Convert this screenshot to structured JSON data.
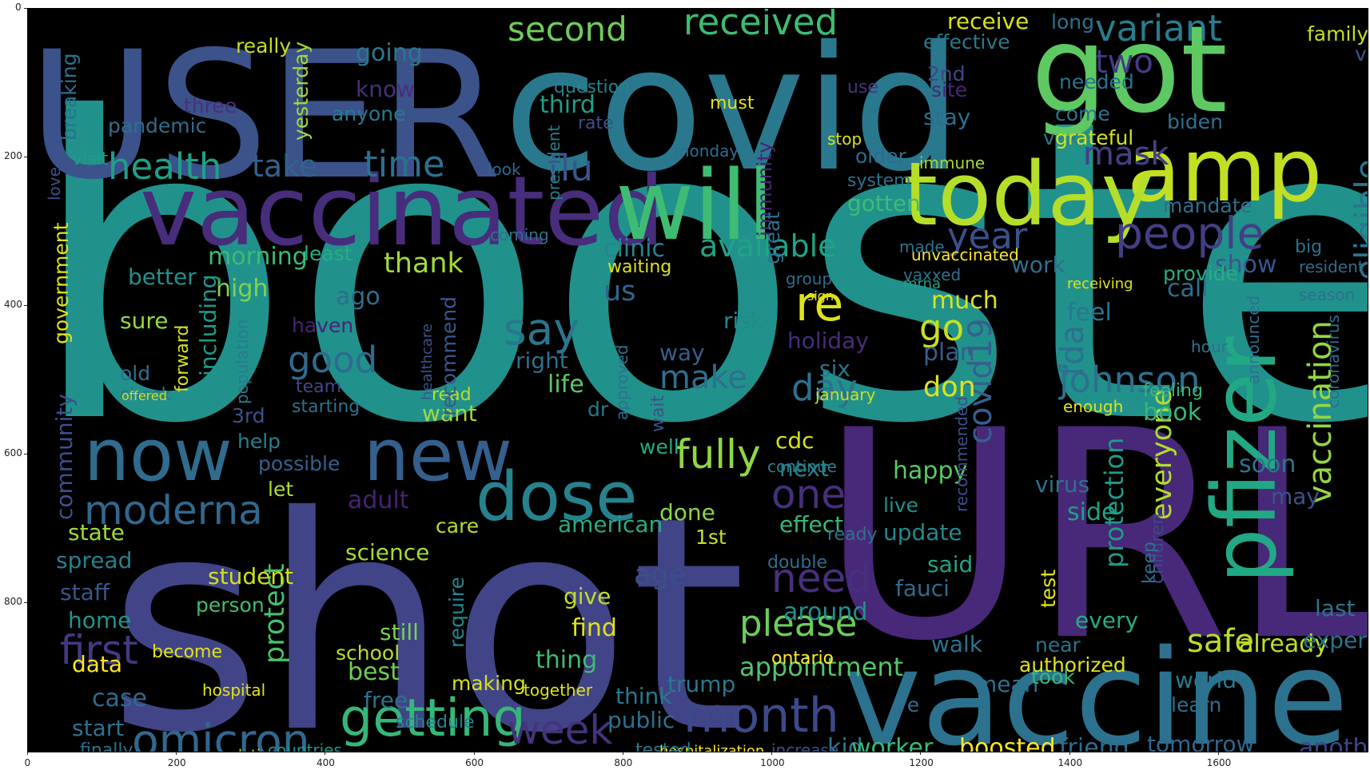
{
  "axes": {
    "x_ticks": [
      "0",
      "200",
      "400",
      "600",
      "800",
      "1000",
      "1200",
      "1400",
      "1600"
    ],
    "y_ticks": [
      "0",
      "200",
      "400",
      "600",
      "800"
    ]
  },
  "words": [
    {
      "text": "booster",
      "color": "#21918c"
    },
    {
      "text": "shot",
      "color": "#414487"
    },
    {
      "text": "covid",
      "color": "#2a788e"
    },
    {
      "text": "URL",
      "color": "#482878"
    },
    {
      "text": "USER",
      "color": "#3b528b"
    },
    {
      "text": "vaccine",
      "color": "#2c728e"
    },
    {
      "text": "vaccinated",
      "color": "#472d7b"
    },
    {
      "text": "got",
      "color": "#5ec962"
    },
    {
      "text": "amp",
      "color": "#c2df23"
    },
    {
      "text": "will",
      "color": "#3fbc73"
    },
    {
      "text": "today",
      "color": "#b5de2b"
    },
    {
      "text": "pfizer",
      "color": "#22a884"
    },
    {
      "text": "dose",
      "color": "#26828e"
    },
    {
      "text": "now",
      "color": "#2f6c8e"
    },
    {
      "text": "new",
      "color": "#355f8d"
    },
    {
      "text": "getting",
      "color": "#35b779"
    },
    {
      "text": "month",
      "color": "#3e4989"
    },
    {
      "text": "omicron",
      "color": "#31688e"
    },
    {
      "text": "moderna",
      "color": "#31688e"
    },
    {
      "text": "first",
      "color": "#443983"
    },
    {
      "text": "people",
      "color": "#433e85"
    },
    {
      "text": "health",
      "color": "#1fa088"
    },
    {
      "text": "received",
      "color": "#3dbc74"
    },
    {
      "text": "second",
      "color": "#6ece58"
    },
    {
      "text": "variant",
      "color": "#287d8e"
    },
    {
      "text": "time",
      "color": "#2d708e"
    },
    {
      "text": "fully",
      "color": "#8fd744"
    },
    {
      "text": "one",
      "color": "#472f7d"
    },
    {
      "text": "need",
      "color": "#46307e"
    },
    {
      "text": "please",
      "color": "#6ccd5a"
    },
    {
      "text": "week",
      "color": "#46327e"
    },
    {
      "text": "re",
      "color": "#dde318"
    },
    {
      "text": "go",
      "color": "#c8e020"
    },
    {
      "text": "say",
      "color": "#2a768e"
    },
    {
      "text": "good",
      "color": "#2f6b8e"
    },
    {
      "text": "day",
      "color": "#2d718e"
    },
    {
      "text": "make",
      "color": "#2e6f8e"
    },
    {
      "text": "johnson",
      "color": "#2d718e"
    },
    {
      "text": "covid19",
      "color": "#34608d"
    },
    {
      "text": "year",
      "color": "#3b518b"
    },
    {
      "text": "available",
      "color": "#20a386"
    },
    {
      "text": "take",
      "color": "#34618d"
    },
    {
      "text": "flu",
      "color": "#39568c"
    },
    {
      "text": "mask",
      "color": "#424186"
    },
    {
      "text": "two",
      "color": "#443b84"
    },
    {
      "text": "eligible",
      "color": "#2a768e"
    },
    {
      "text": "vaccination",
      "color": "#93d741"
    },
    {
      "text": "safe",
      "color": "#b8de29"
    },
    {
      "text": "everyone",
      "color": "#b0dd2f"
    },
    {
      "text": "protection",
      "color": "#1e9c89"
    },
    {
      "text": "fda",
      "color": "#2d708e"
    },
    {
      "text": "booked",
      "color": "#b2dd2d"
    },
    {
      "text": "appointment",
      "color": "#54c568"
    },
    {
      "text": "protect",
      "color": "#48c16e"
    },
    {
      "text": "morning",
      "color": "#3cbb75"
    },
    {
      "text": "thank",
      "color": "#a2da37"
    },
    {
      "text": "clinic",
      "color": "#25848e"
    },
    {
      "text": "us",
      "color": "#32648e"
    },
    {
      "text": "life",
      "color": "#5cc863"
    },
    {
      "text": "don",
      "color": "#dfe318"
    },
    {
      "text": "plan",
      "color": "#355e8d"
    },
    {
      "text": "much",
      "color": "#dce319"
    },
    {
      "text": "feel",
      "color": "#2a778e"
    },
    {
      "text": "work",
      "color": "#2e6d8e"
    },
    {
      "text": "call",
      "color": "#2e6f8e"
    },
    {
      "text": "show",
      "color": "#39568c"
    },
    {
      "text": "book",
      "color": "#35b779"
    },
    {
      "text": "soon",
      "color": "#2b748e"
    },
    {
      "text": "kid",
      "color": "#29798e"
    },
    {
      "text": "friend",
      "color": "#2f6c8e"
    },
    {
      "text": "worker",
      "color": "#3aba76"
    },
    {
      "text": "boosted",
      "color": "#fde725"
    },
    {
      "text": "tomorrow",
      "color": "#31678e"
    },
    {
      "text": "another",
      "color": "#3f4788"
    },
    {
      "text": "already",
      "color": "#bddf26"
    },
    {
      "text": "last",
      "color": "#2b758e"
    },
    {
      "text": "expert",
      "color": "#2c738e"
    },
    {
      "text": "authorized",
      "color": "#dbe319"
    },
    {
      "text": "case",
      "color": "#306a8e"
    },
    {
      "text": "start",
      "color": "#2d718e"
    },
    {
      "text": "data",
      "color": "#fde725"
    },
    {
      "text": "home",
      "color": "#1f948c"
    },
    {
      "text": "staff",
      "color": "#39568c"
    },
    {
      "text": "spread",
      "color": "#27808e"
    },
    {
      "text": "state",
      "color": "#a0da39"
    },
    {
      "text": "student",
      "color": "#d0e11c"
    },
    {
      "text": "person",
      "color": "#40bd72"
    },
    {
      "text": "best",
      "color": "#6ccd5a"
    },
    {
      "text": "free",
      "color": "#2c738e"
    },
    {
      "text": "still",
      "color": "#7ad151"
    },
    {
      "text": "school",
      "color": "#b8de29"
    },
    {
      "text": "thing",
      "color": "#3fbc73"
    },
    {
      "text": "find",
      "color": "#dfe318"
    },
    {
      "text": "give",
      "color": "#c0df25"
    },
    {
      "text": "age",
      "color": "#3c4f8a"
    },
    {
      "text": "care",
      "color": "#b5de2b"
    },
    {
      "text": "american",
      "color": "#26ad81"
    },
    {
      "text": "science",
      "color": "#a5db36"
    },
    {
      "text": "done",
      "color": "#8bd646"
    },
    {
      "text": "effect",
      "color": "#37b878"
    },
    {
      "text": "update",
      "color": "#23888e"
    },
    {
      "text": "live",
      "color": "#21918c"
    },
    {
      "text": "side",
      "color": "#1fa287"
    },
    {
      "text": "may",
      "color": "#3b528b"
    },
    {
      "text": "test",
      "color": "#e5e419"
    },
    {
      "text": "happy",
      "color": "#5ac864"
    },
    {
      "text": "fauci",
      "color": "#2f6c8e"
    },
    {
      "text": "said",
      "color": "#20a386"
    },
    {
      "text": "around",
      "color": "#21908d"
    },
    {
      "text": "next",
      "color": "#27808e"
    },
    {
      "text": "cdc",
      "color": "#d8e219"
    },
    {
      "text": "holiday",
      "color": "#472c7a"
    },
    {
      "text": "six",
      "color": "#2b748e"
    },
    {
      "text": "risk",
      "color": "#23898e"
    },
    {
      "text": "way",
      "color": "#355f8d"
    },
    {
      "text": "right",
      "color": "#2d708e"
    },
    {
      "text": "ago",
      "color": "#2e6e8e"
    },
    {
      "text": "haven",
      "color": "#482374"
    },
    {
      "text": "sure",
      "color": "#95d840"
    },
    {
      "text": "high",
      "color": "#7fd34e"
    },
    {
      "text": "better",
      "color": "#21918c"
    },
    {
      "text": "least",
      "color": "#27ad81"
    },
    {
      "text": "including",
      "color": "#1e9b8a"
    },
    {
      "text": "government",
      "color": "#dde318"
    },
    {
      "text": "community",
      "color": "#3c508b"
    },
    {
      "text": "help",
      "color": "#27808e"
    },
    {
      "text": "possible",
      "color": "#34618d"
    },
    {
      "text": "let",
      "color": "#b0dd2f"
    },
    {
      "text": "3rd",
      "color": "#3b528b"
    },
    {
      "text": "adult",
      "color": "#482173"
    },
    {
      "text": "want",
      "color": "#a2da37"
    },
    {
      "text": "read",
      "color": "#b8de29"
    },
    {
      "text": "well",
      "color": "#25ab82"
    },
    {
      "text": "recommend",
      "color": "#38588c"
    },
    {
      "text": "dr",
      "color": "#2a778e"
    },
    {
      "text": "1st",
      "color": "#c5e021"
    },
    {
      "text": "public",
      "color": "#2c728e"
    },
    {
      "text": "think",
      "color": "#2a788e"
    },
    {
      "text": "trump",
      "color": "#2a788e"
    },
    {
      "text": "mean",
      "color": "#2d718e"
    },
    {
      "text": "learn",
      "color": "#2e6f8e"
    },
    {
      "text": "world",
      "color": "#2a778e"
    },
    {
      "text": "require",
      "color": "#24868e"
    },
    {
      "text": "become",
      "color": "#dfe318"
    },
    {
      "text": "hospital",
      "color": "#dfe318"
    },
    {
      "text": "making",
      "color": "#d2e21b"
    },
    {
      "text": "together",
      "color": "#dfe318"
    },
    {
      "text": "schedule",
      "color": "#26828e"
    },
    {
      "text": "finally",
      "color": "#2c738e"
    },
    {
      "text": "recommendation",
      "color": "#d2e21b"
    },
    {
      "text": "countries",
      "color": "#1f998a"
    },
    {
      "text": "hospitalization",
      "color": "#fde725"
    },
    {
      "text": "increase",
      "color": "#3b528b"
    },
    {
      "text": "tested",
      "color": "#2a788e"
    },
    {
      "text": "ontario",
      "color": "#fde725"
    },
    {
      "text": "walk",
      "color": "#2d708e"
    },
    {
      "text": "near",
      "color": "#2c728e"
    },
    {
      "text": "every",
      "color": "#26ad81"
    },
    {
      "text": "took",
      "color": "#37b878"
    },
    {
      "text": "ye",
      "color": "#2f6c8e"
    },
    {
      "text": "mandate",
      "color": "#2e6f8e"
    },
    {
      "text": "vax",
      "color": "#29798e"
    },
    {
      "text": "third",
      "color": "#1f9e89"
    },
    {
      "text": "older",
      "color": "#2f6b8e"
    },
    {
      "text": "stay",
      "color": "#2e6d8e"
    },
    {
      "text": "site",
      "color": "#482677"
    },
    {
      "text": "2nd",
      "color": "#3f4788"
    },
    {
      "text": "effective",
      "color": "#2a778e"
    },
    {
      "text": "receive",
      "color": "#d8e219"
    },
    {
      "text": "long",
      "color": "#2d708e"
    },
    {
      "text": "family",
      "color": "#c0df25"
    },
    {
      "text": "biden",
      "color": "#2c728e"
    },
    {
      "text": "via",
      "color": "#39568c"
    },
    {
      "text": "come",
      "color": "#2c738e"
    },
    {
      "text": "grateful",
      "color": "#d0e11c"
    },
    {
      "text": "needed",
      "color": "#2c728e"
    },
    {
      "text": "pandemic",
      "color": "#2e6e8e"
    },
    {
      "text": "breaking",
      "color": "#2d708e"
    },
    {
      "text": "three",
      "color": "#46327e"
    },
    {
      "text": "anyone",
      "color": "#29798e"
    },
    {
      "text": "know",
      "color": "#472f7d"
    },
    {
      "text": "going",
      "color": "#2a788e"
    },
    {
      "text": "really",
      "color": "#c2df23"
    },
    {
      "text": "yesterday",
      "color": "#a0da39"
    },
    {
      "text": "question",
      "color": "#26828e"
    },
    {
      "text": "rate",
      "color": "#3c4f8a"
    },
    {
      "text": "president",
      "color": "#27808e"
    },
    {
      "text": "must",
      "color": "#dfe318"
    },
    {
      "text": "use",
      "color": "#46327e"
    },
    {
      "text": "gotten",
      "color": "#3dbc74"
    },
    {
      "text": "stop",
      "color": "#dce319"
    },
    {
      "text": "system",
      "color": "#2c728e"
    },
    {
      "text": "immune",
      "color": "#a2da37"
    },
    {
      "text": "look",
      "color": "#31678e"
    },
    {
      "text": "monday",
      "color": "#2e6e8e"
    },
    {
      "text": "immunity",
      "color": "#482475"
    },
    {
      "text": "great",
      "color": "#2e6f8e"
    },
    {
      "text": "group",
      "color": "#2e6d8e"
    },
    {
      "text": "sign",
      "color": "#dde318"
    },
    {
      "text": "january",
      "color": "#c8e020"
    },
    {
      "text": "recommended",
      "color": "#3c4f8a"
    },
    {
      "text": "team",
      "color": "#3f4889"
    },
    {
      "text": "check",
      "color": "#2d718e"
    },
    {
      "text": "old",
      "color": "#2e6e8e"
    },
    {
      "text": "population",
      "color": "#29798e"
    },
    {
      "text": "starting",
      "color": "#2d718e"
    },
    {
      "text": "forward",
      "color": "#d8e219"
    },
    {
      "text": "healthcare",
      "color": "#3b528b"
    },
    {
      "text": "approved",
      "color": "#2c728e"
    },
    {
      "text": "wait",
      "color": "#3b528b"
    },
    {
      "text": "children",
      "color": "#3e4989"
    },
    {
      "text": "keep",
      "color": "#2e6f8e"
    },
    {
      "text": "feeling",
      "color": "#35b779"
    },
    {
      "text": "announced",
      "color": "#2d718e"
    },
    {
      "text": "provide",
      "color": "#26ad81"
    },
    {
      "text": "unvaccinated",
      "color": "#fde725"
    },
    {
      "text": "vaxxed",
      "color": "#2c728e"
    },
    {
      "text": "made",
      "color": "#2b748e"
    },
    {
      "text": "mrna",
      "color": "#1fa088"
    },
    {
      "text": "offered",
      "color": "#d0e11c"
    },
    {
      "text": "waiting",
      "color": "#dce319"
    },
    {
      "text": "coming",
      "color": "#2c728e"
    },
    {
      "text": "love",
      "color": "#3c508b"
    },
    {
      "text": "visit",
      "color": "#1e9c89"
    },
    {
      "text": "continue",
      "color": "#26828e"
    },
    {
      "text": "double",
      "color": "#2e6e8e"
    },
    {
      "text": "ready",
      "color": "#2c738e"
    },
    {
      "text": "virus",
      "color": "#2d718e"
    },
    {
      "text": "coronavirus",
      "color": "#2e6e8e"
    },
    {
      "text": "hour",
      "color": "#2c728e"
    },
    {
      "text": "enough",
      "color": "#dfe318"
    },
    {
      "text": "receiving",
      "color": "#dfe318"
    },
    {
      "text": "season",
      "color": "#2d708e"
    },
    {
      "text": "big",
      "color": "#2c728e"
    },
    {
      "text": "resident",
      "color": "#2e6d8e"
    },
    {
      "text": "mask",
      "color": "#424186"
    }
  ]
}
